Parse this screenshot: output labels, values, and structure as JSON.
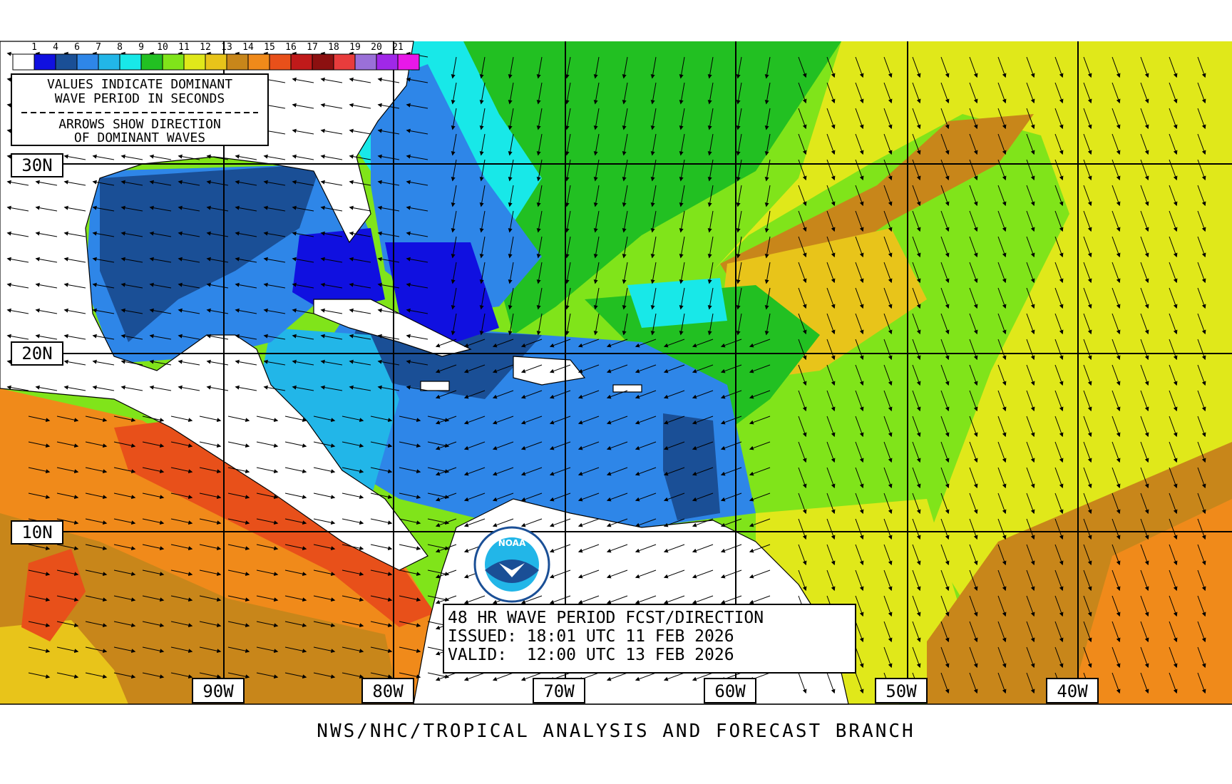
{
  "legend": {
    "values": [
      "1",
      "4",
      "6",
      "7",
      "8",
      "9",
      "10",
      "11",
      "12",
      "13",
      "14",
      "15",
      "16",
      "17",
      "18",
      "19",
      "20",
      "21"
    ],
    "colors": [
      "#ffffff",
      "#1010e0",
      "#1a4f96",
      "#2e86e8",
      "#22b6e8",
      "#18e8e8",
      "#22c022",
      "#80e41a",
      "#e0e81a",
      "#e8c41a",
      "#c8861a",
      "#f08a1a",
      "#e8501a",
      "#c01a1a",
      "#8c1010",
      "#e83c3c",
      "#9a70d8",
      "#a028e8",
      "#e818e8"
    ]
  },
  "info_box": {
    "line1": "VALUES INDICATE DOMINANT",
    "line2": "WAVE PERIOD IN SECONDS",
    "line3": "ARROWS SHOW DIRECTION",
    "line4": "OF DOMINANT WAVES"
  },
  "lat_labels": [
    "30N",
    "20N",
    "10N"
  ],
  "lon_labels": [
    "90W",
    "80W",
    "70W",
    "60W",
    "50W",
    "40W"
  ],
  "title_box": {
    "line1": "48 HR WAVE PERIOD FCST/DIRECTION",
    "line2": "ISSUED: 18:01 UTC 11 FEB 2026",
    "line3": "VALID:  12:00 UTC 13 FEB 2026"
  },
  "logo": {
    "text": "NOAA"
  },
  "footer": "NWS/NHC/TROPICAL ANALYSIS AND FORECAST BRANCH"
}
